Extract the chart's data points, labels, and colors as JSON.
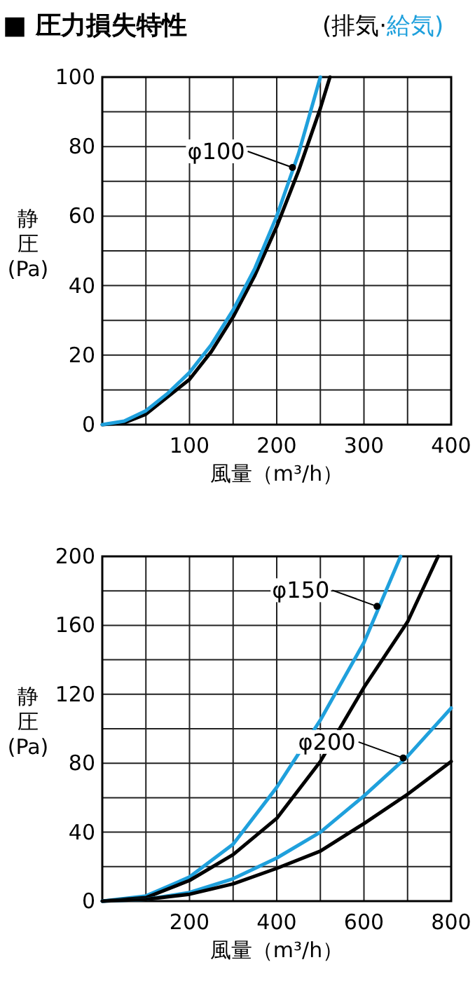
{
  "chart_data": [
    {
      "type": "line",
      "title": "■ 圧力損失特性",
      "xlabel": "風量（m³/h）",
      "ylabel": "静圧(Pa)",
      "legend": "top",
      "grid": true,
      "marker": "none",
      "line_style": "solid",
      "xlim": [
        0,
        400
      ],
      "ylim": [
        0,
        100
      ],
      "xticks": [
        {
          "value": 0,
          "label": null
        },
        {
          "value": 50,
          "label": null
        },
        100,
        {
          "value": 150,
          "label": null
        },
        200,
        {
          "value": 250,
          "label": null
        },
        300,
        {
          "value": 350,
          "label": null
        },
        400
      ],
      "yticks": [
        0,
        {
          "value": 10,
          "label": null
        },
        20,
        {
          "value": 30,
          "label": null
        },
        40,
        {
          "value": 50,
          "label": null
        },
        60,
        {
          "value": 70,
          "label": null
        },
        80,
        {
          "value": 90,
          "label": null
        },
        100
      ],
      "annotations": [
        {
          "text": "φ100",
          "x": 218,
          "y": 74
        }
      ],
      "series": [
        {
          "name": "(排気·",
          "color": "#000000",
          "x": [
            0,
            25,
            50,
            75,
            100,
            125,
            150,
            175,
            200,
            225,
            250,
            261
          ],
          "values": [
            0,
            0.5,
            3,
            8,
            13,
            21,
            31,
            43,
            57,
            73,
            91,
            100
          ]
        },
        {
          "name": "給気)",
          "color": "#1fa0dc",
          "x": [
            0,
            25,
            50,
            75,
            100,
            125,
            150,
            175,
            200,
            225,
            250
          ],
          "values": [
            0,
            1,
            4,
            9,
            15,
            23,
            33,
            45,
            60,
            78,
            100
          ]
        }
      ]
    },
    {
      "type": "line",
      "xlabel": "風量（m³/h）",
      "ylabel": "静圧(Pa)",
      "grid": true,
      "marker": "none",
      "line_style": "solid",
      "xlim": [
        0,
        800
      ],
      "ylim": [
        0,
        200
      ],
      "xticks": [
        {
          "value": 0,
          "label": null
        },
        {
          "value": 100,
          "label": null
        },
        200,
        {
          "value": 300,
          "label": null
        },
        400,
        {
          "value": 500,
          "label": null
        },
        600,
        {
          "value": 700,
          "label": null
        },
        800
      ],
      "yticks": [
        0,
        {
          "value": 20,
          "label": null
        },
        40,
        {
          "value": 60,
          "label": null
        },
        80,
        {
          "value": 100,
          "label": null
        },
        120,
        {
          "value": 140,
          "label": null
        },
        160,
        {
          "value": 180,
          "label": null
        },
        200
      ],
      "annotations": [
        {
          "text": "φ150",
          "x": 630,
          "y": 171
        },
        {
          "text": "φ200",
          "x": 690,
          "y": 83
        }
      ],
      "series": [
        {
          "color": "#1fa0dc",
          "x": [
            0,
            100,
            200,
            300,
            400,
            500,
            600,
            684
          ],
          "values": [
            0,
            3,
            14,
            33,
            66,
            105,
            150,
            200
          ]
        },
        {
          "color": "#000000",
          "x": [
            0,
            100,
            200,
            300,
            400,
            500,
            600,
            700,
            770
          ],
          "values": [
            0,
            2,
            12,
            27,
            48,
            81,
            124,
            162,
            200
          ]
        },
        {
          "color": "#1fa0dc",
          "x": [
            0,
            100,
            200,
            300,
            400,
            500,
            600,
            700,
            800
          ],
          "values": [
            0,
            1,
            5,
            13,
            25,
            40,
            61,
            84,
            112
          ]
        },
        {
          "color": "#000000",
          "x": [
            0,
            100,
            200,
            300,
            400,
            500,
            600,
            700,
            800
          ],
          "values": [
            0,
            1,
            4,
            10,
            19,
            29,
            45,
            62,
            81
          ]
        }
      ]
    }
  ]
}
